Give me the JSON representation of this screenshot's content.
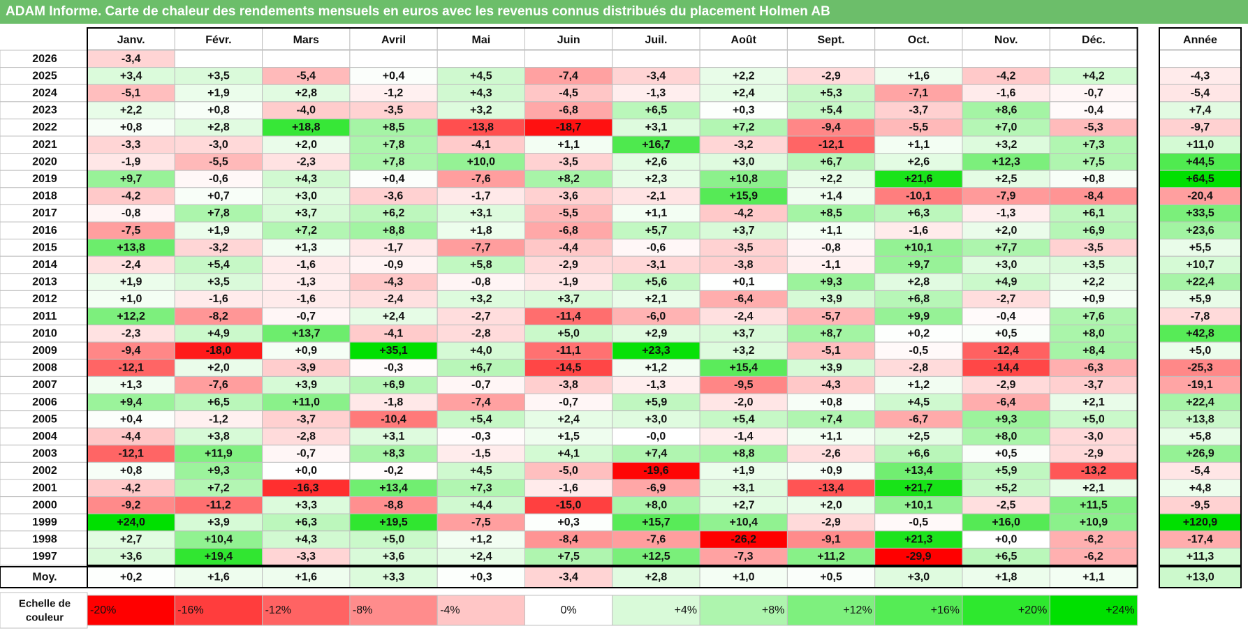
{
  "title": "ADAM Informe. Carte de chaleur des rendements mensuels en euros avec les revenus connus distribués du placement Holmen AB",
  "chart_data": {
    "type": "heatmap",
    "columns": [
      "Janv.",
      "Févr.",
      "Mars",
      "Avril",
      "Mai",
      "Juin",
      "Juil.",
      "Août",
      "Sept.",
      "Oct.",
      "Nov.",
      "Déc."
    ],
    "annual_header": "Année",
    "rows": [
      {
        "year": "2026",
        "months": [
          "-3,4",
          "",
          "",
          "",
          "",
          "",
          "",
          "",
          "",
          "",
          "",
          ""
        ],
        "annual": ""
      },
      {
        "year": "2025",
        "months": [
          "+3,4",
          "+3,5",
          "-5,4",
          "+0,4",
          "+4,5",
          "-7,4",
          "-3,4",
          "+2,2",
          "-2,9",
          "+1,6",
          "-4,2",
          "+4,2"
        ],
        "annual": "-4,3"
      },
      {
        "year": "2024",
        "months": [
          "-5,1",
          "+1,9",
          "+2,8",
          "-1,2",
          "+4,3",
          "-4,5",
          "-1,3",
          "+2,4",
          "+5,3",
          "-7,1",
          "-1,6",
          "-0,7"
        ],
        "annual": "-5,4"
      },
      {
        "year": "2023",
        "months": [
          "+2,2",
          "+0,8",
          "-4,0",
          "-3,5",
          "+3,2",
          "-6,8",
          "+6,5",
          "+0,3",
          "+5,4",
          "-3,7",
          "+8,6",
          "-0,4"
        ],
        "annual": "+7,4"
      },
      {
        "year": "2022",
        "months": [
          "+0,8",
          "+2,8",
          "+18,8",
          "+8,5",
          "-13,8",
          "-18,7",
          "+3,1",
          "+7,2",
          "-9,4",
          "-5,5",
          "+7,0",
          "-5,3"
        ],
        "annual": "-9,7"
      },
      {
        "year": "2021",
        "months": [
          "-3,3",
          "-3,0",
          "+2,0",
          "+7,8",
          "-4,1",
          "+1,1",
          "+16,7",
          "-3,2",
          "-12,1",
          "+1,1",
          "+3,2",
          "+7,3"
        ],
        "annual": "+11,0"
      },
      {
        "year": "2020",
        "months": [
          "-1,9",
          "-5,5",
          "-2,3",
          "+7,8",
          "+10,0",
          "-3,5",
          "+2,6",
          "+3,0",
          "+6,7",
          "+2,6",
          "+12,3",
          "+7,5"
        ],
        "annual": "+44,5"
      },
      {
        "year": "2019",
        "months": [
          "+9,7",
          "-0,6",
          "+4,3",
          "+0,4",
          "-7,6",
          "+8,2",
          "+2,3",
          "+10,8",
          "+2,2",
          "+21,6",
          "+2,5",
          "+0,8"
        ],
        "annual": "+64,5"
      },
      {
        "year": "2018",
        "months": [
          "-4,2",
          "+0,7",
          "+3,0",
          "-3,6",
          "-1,7",
          "-3,6",
          "-2,1",
          "+15,9",
          "+1,4",
          "-10,1",
          "-7,9",
          "-8,4"
        ],
        "annual": "-20,4"
      },
      {
        "year": "2017",
        "months": [
          "-0,8",
          "+7,8",
          "+3,7",
          "+6,2",
          "+3,1",
          "-5,5",
          "+1,1",
          "-4,2",
          "+8,5",
          "+6,3",
          "-1,3",
          "+6,1"
        ],
        "annual": "+33,5"
      },
      {
        "year": "2016",
        "months": [
          "-7,5",
          "+1,9",
          "+7,2",
          "+8,8",
          "+1,8",
          "-6,8",
          "+5,7",
          "+3,7",
          "+1,1",
          "-1,6",
          "+2,0",
          "+6,9"
        ],
        "annual": "+23,6"
      },
      {
        "year": "2015",
        "months": [
          "+13,8",
          "-3,2",
          "+1,3",
          "-1,7",
          "-7,7",
          "-4,4",
          "-0,6",
          "-3,5",
          "-0,8",
          "+10,1",
          "+7,7",
          "-3,5"
        ],
        "annual": "+5,5"
      },
      {
        "year": "2014",
        "months": [
          "-2,4",
          "+5,4",
          "-1,6",
          "-0,9",
          "+5,8",
          "-2,9",
          "-3,1",
          "-3,8",
          "-1,1",
          "+9,7",
          "+3,0",
          "+3,5"
        ],
        "annual": "+10,7"
      },
      {
        "year": "2013",
        "months": [
          "+1,9",
          "+3,5",
          "-1,3",
          "-4,3",
          "-0,8",
          "-1,9",
          "+5,6",
          "+0,1",
          "+9,3",
          "+2,8",
          "+4,9",
          "+2,2"
        ],
        "annual": "+22,4"
      },
      {
        "year": "2012",
        "months": [
          "+1,0",
          "-1,6",
          "-1,6",
          "-2,4",
          "+3,2",
          "+3,7",
          "+2,1",
          "-6,4",
          "+3,9",
          "+6,8",
          "-2,7",
          "+0,9"
        ],
        "annual": "+5,9"
      },
      {
        "year": "2011",
        "months": [
          "+12,2",
          "-8,2",
          "-0,7",
          "+2,4",
          "-2,7",
          "-11,4",
          "-6,0",
          "-2,4",
          "-5,7",
          "+9,9",
          "-0,4",
          "+7,6"
        ],
        "annual": "-7,8"
      },
      {
        "year": "2010",
        "months": [
          "-2,3",
          "+4,9",
          "+13,7",
          "-4,1",
          "-2,8",
          "+5,0",
          "+2,9",
          "+3,7",
          "+8,7",
          "+0,2",
          "+0,5",
          "+8,0"
        ],
        "annual": "+42,8"
      },
      {
        "year": "2009",
        "months": [
          "-9,4",
          "-18,0",
          "+0,9",
          "+35,1",
          "+4,0",
          "-11,1",
          "+23,3",
          "+3,2",
          "-5,1",
          "-0,5",
          "-12,4",
          "+8,4"
        ],
        "annual": "+5,0"
      },
      {
        "year": "2008",
        "months": [
          "-12,1",
          "+2,0",
          "-3,9",
          "-0,3",
          "+6,7",
          "-14,5",
          "+1,2",
          "+15,4",
          "+3,9",
          "-2,8",
          "-14,4",
          "-6,3"
        ],
        "annual": "-25,3"
      },
      {
        "year": "2007",
        "months": [
          "+1,3",
          "-7,6",
          "+3,9",
          "+6,9",
          "-0,7",
          "-3,8",
          "-1,3",
          "-9,5",
          "-4,3",
          "+1,2",
          "-2,9",
          "-3,7"
        ],
        "annual": "-19,1"
      },
      {
        "year": "2006",
        "months": [
          "+9,4",
          "+6,5",
          "+11,0",
          "-1,8",
          "-7,4",
          "-0,7",
          "+5,9",
          "-2,0",
          "+0,8",
          "+4,5",
          "-6,4",
          "+2,1"
        ],
        "annual": "+22,4"
      },
      {
        "year": "2005",
        "months": [
          "+0,4",
          "-1,2",
          "-3,7",
          "-10,4",
          "+5,4",
          "+2,4",
          "+3,0",
          "+5,4",
          "+7,4",
          "-6,7",
          "+9,3",
          "+5,0"
        ],
        "annual": "+13,8"
      },
      {
        "year": "2004",
        "months": [
          "-4,4",
          "+3,8",
          "-2,8",
          "+3,1",
          "-0,3",
          "+1,5",
          "-0,0",
          "-1,4",
          "+1,1",
          "+2,5",
          "+8,0",
          "-3,0"
        ],
        "annual": "+5,8"
      },
      {
        "year": "2003",
        "months": [
          "-12,1",
          "+11,9",
          "-0,7",
          "+8,3",
          "-1,5",
          "+4,1",
          "+7,4",
          "+8,8",
          "-2,6",
          "+6,6",
          "+0,5",
          "-2,9"
        ],
        "annual": "+26,9"
      },
      {
        "year": "2002",
        "months": [
          "+0,8",
          "+9,3",
          "+0,0",
          "-0,2",
          "+4,5",
          "-5,0",
          "-19,6",
          "+1,9",
          "+0,9",
          "+13,4",
          "+5,9",
          "-13,2"
        ],
        "annual": "-5,4"
      },
      {
        "year": "2001",
        "months": [
          "-4,2",
          "+7,2",
          "-16,3",
          "+13,4",
          "+7,3",
          "-1,6",
          "-6,9",
          "+3,1",
          "-13,4",
          "+21,7",
          "+5,2",
          "+2,1"
        ],
        "annual": "+4,8"
      },
      {
        "year": "2000",
        "months": [
          "-9,2",
          "-11,2",
          "+3,3",
          "-8,8",
          "+4,4",
          "-15,0",
          "+8,0",
          "+2,7",
          "+2,0",
          "+10,1",
          "-2,5",
          "+11,5"
        ],
        "annual": "-9,5"
      },
      {
        "year": "1999",
        "months": [
          "+24,0",
          "+3,9",
          "+6,3",
          "+19,5",
          "-7,5",
          "+0,3",
          "+15,7",
          "+10,4",
          "-2,9",
          "-0,5",
          "+16,0",
          "+10,9"
        ],
        "annual": "+120,9"
      },
      {
        "year": "1998",
        "months": [
          "+2,7",
          "+10,4",
          "+4,3",
          "+5,0",
          "+1,2",
          "-8,4",
          "-7,6",
          "-26,2",
          "-9,1",
          "+21,3",
          "+0,0",
          "-6,2"
        ],
        "annual": "-17,4"
      },
      {
        "year": "1997",
        "months": [
          "+3,6",
          "+19,4",
          "-3,3",
          "+3,6",
          "+2,4",
          "+7,5",
          "+12,5",
          "-7,3",
          "+11,2",
          "-29,9",
          "+6,5",
          "-6,2"
        ],
        "annual": "+11,3"
      }
    ],
    "average": {
      "label": "Moy.",
      "months": [
        "+0,2",
        "+1,6",
        "+1,6",
        "+3,3",
        "+0,3",
        "-3,4",
        "+2,8",
        "+1,0",
        "+0,5",
        "+3,0",
        "+1,8",
        "+1,1"
      ],
      "annual": "+13,0"
    },
    "scale": {
      "label": [
        "Echelle de",
        "couleur"
      ],
      "stops": [
        {
          "text": "-20%",
          "color": "#ff0000"
        },
        {
          "text": "-16%",
          "color": "#ff3d3d"
        },
        {
          "text": "-12%",
          "color": "#ff6363"
        },
        {
          "text": "-8%",
          "color": "#ff8c8c"
        },
        {
          "text": "-4%",
          "color": "#ffc6c6"
        },
        {
          "text": "0%",
          "color": "#ffffff"
        },
        {
          "text": "+4%",
          "color": "#d9fad9"
        },
        {
          "text": "+8%",
          "color": "#aef5ae"
        },
        {
          "text": "+12%",
          "color": "#7ef07e"
        },
        {
          "text": "+16%",
          "color": "#55ec55"
        },
        {
          "text": "+20%",
          "color": "#2ee82e"
        },
        {
          "text": "+24%",
          "color": "#00e000"
        }
      ]
    }
  },
  "colors": {
    "title_bar": "#6cbe6a",
    "negative_max": "#ff0000",
    "positive_max": "#00e000",
    "grid": "#bfbfbf"
  }
}
